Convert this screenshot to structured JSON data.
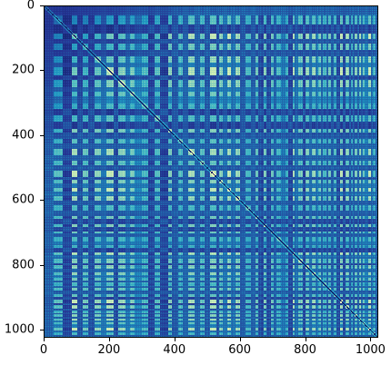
{
  "chart_data": {
    "type": "heatmap",
    "title": "",
    "xlabel": "",
    "ylabel": "",
    "xlim": [
      0,
      1024
    ],
    "ylim": [
      1024,
      0
    ],
    "matrix_size": 1024,
    "x_ticks": [
      0,
      200,
      400,
      600,
      800,
      1000
    ],
    "y_ticks": [
      0,
      200,
      400,
      600,
      800,
      1000
    ],
    "x_tick_labels": [
      "0",
      "200",
      "400",
      "600",
      "800",
      "1000"
    ],
    "y_tick_labels": [
      "0",
      "200",
      "400",
      "600",
      "800",
      "1000"
    ],
    "colormap": "YlGnBu",
    "colormap_stops": [
      "#ffffd9",
      "#edf8b1",
      "#c7e9b4",
      "#7fcdbb",
      "#41b6c4",
      "#1d91c0",
      "#225ea8",
      "#253494",
      "#081d58"
    ],
    "diagonal": "dark",
    "grid": false
  }
}
